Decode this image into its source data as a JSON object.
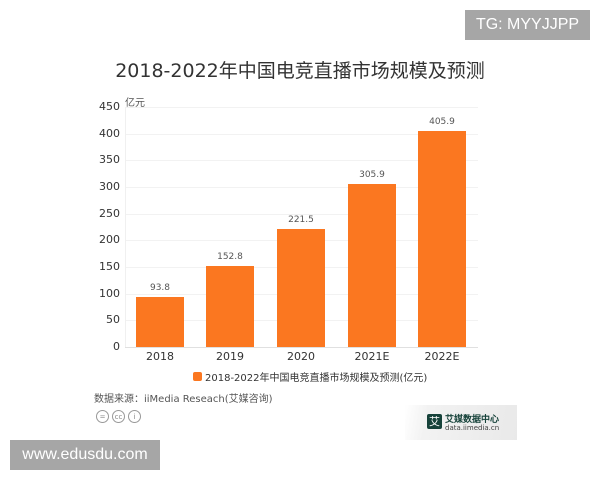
{
  "watermarks": {
    "top_right": "TG: MYYJJPP",
    "bottom_left": "www.edusdu.com"
  },
  "chart_data": {
    "type": "bar",
    "title": "2018-2022年中国电竞直播市场规模及预测",
    "ylabel": "亿元",
    "xlabel": "",
    "categories": [
      "2018",
      "2019",
      "2020",
      "2021E",
      "2022E"
    ],
    "series": [
      {
        "name": "2018-2022年中国电竞直播市场规模及预测(亿元)",
        "values": [
          93.8,
          152.8,
          221.5,
          305.9,
          405.9
        ],
        "color": "#fb7720"
      }
    ],
    "value_labels": [
      "93.8",
      "152.8",
      "221.5",
      "305.9",
      "405.9"
    ],
    "yticks": [
      "0",
      "50",
      "100",
      "150",
      "200",
      "250",
      "300",
      "350",
      "400",
      "450"
    ],
    "ylim": [
      0,
      450
    ],
    "grid": true,
    "legend_position": "bottom"
  },
  "source": "数据来源：iiMedia Reseach(艾媒咨询)",
  "license_icons": [
    "nd-icon",
    "cc-icon",
    "by-icon"
  ],
  "license_glyphs": [
    "=",
    "cc",
    "i"
  ],
  "brand": {
    "logo_char": "艾",
    "name": "艾媒数据中心",
    "url": "data.iimedia.cn"
  }
}
